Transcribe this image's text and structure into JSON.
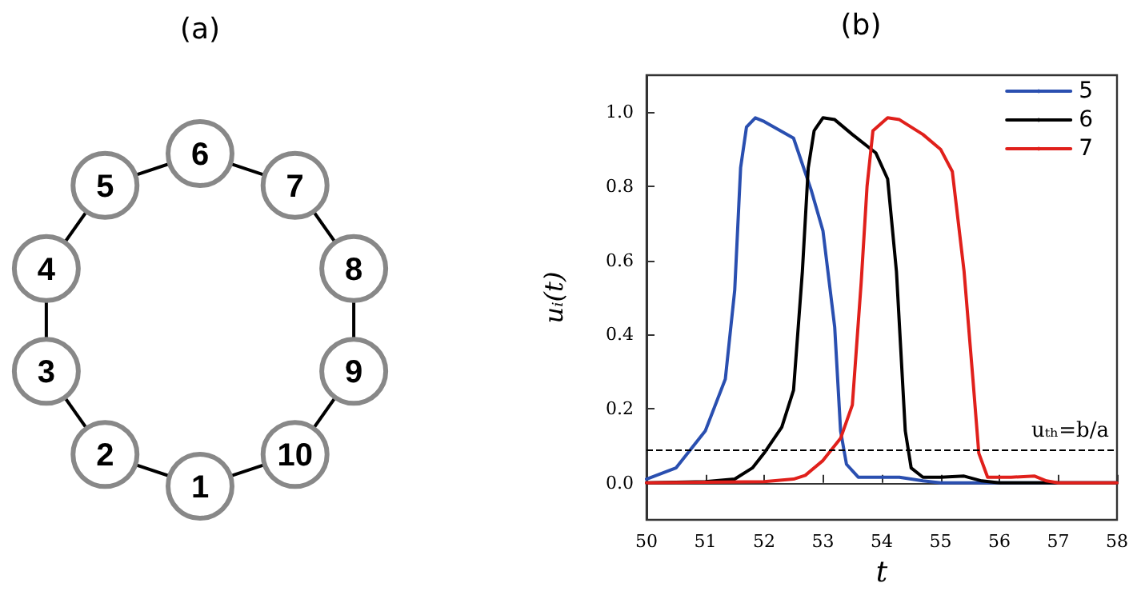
{
  "chart_data": [
    {
      "type": "other",
      "title": "(a)",
      "annotations": [
        "1",
        "2",
        "3",
        "4",
        "5",
        "6",
        "7",
        "8",
        "9",
        "10"
      ]
    },
    {
      "type": "line",
      "title": "(b)",
      "xlabel": "t",
      "ylabel": "uᵢ(t)",
      "xlim": [
        50,
        58
      ],
      "xticks": [
        50,
        51,
        52,
        53,
        54,
        55,
        56,
        57,
        58
      ],
      "ylim": [
        -0.1,
        1.1
      ],
      "yticks": [
        {
          "value": 0,
          "label": "0.0"
        },
        {
          "value": 0.2,
          "label": "0.2"
        },
        {
          "value": 0.4,
          "label": "0.4"
        },
        {
          "value": 0.6,
          "label": "0.6"
        },
        {
          "value": 0.8,
          "label": "0.8"
        },
        {
          "value": 1,
          "label": "1.0"
        }
      ],
      "legend": "top right",
      "line_style": "solid",
      "ref_lines": [
        {
          "axis": "y",
          "value": 0.085,
          "label": "uₜₕ=b/a",
          "line_style": "dashed",
          "color": "#000000"
        }
      ],
      "series": [
        {
          "name": "5",
          "color": "#2a4fb0",
          "x": [
            50,
            50.5,
            51,
            51.34,
            51.5,
            51.6,
            51.7,
            51.85,
            52,
            52.5,
            52.8,
            53,
            53.2,
            53.3,
            53.4,
            53.6,
            54,
            54.3,
            54.7,
            55,
            58
          ],
          "values": [
            0.01,
            0.04,
            0.14,
            0.28,
            0.52,
            0.85,
            0.96,
            0.985,
            0.975,
            0.93,
            0.79,
            0.68,
            0.42,
            0.14,
            0.05,
            0.015,
            0.015,
            0.015,
            0.005,
            0,
            0
          ]
        },
        {
          "name": "6",
          "color": "#000000",
          "x": [
            50,
            51,
            51.5,
            51.8,
            52,
            52.3,
            52.5,
            52.65,
            52.75,
            52.85,
            53,
            53.2,
            53.5,
            53.9,
            54.1,
            54.25,
            54.4,
            54.5,
            54.7,
            55,
            55.4,
            55.7,
            56,
            58
          ],
          "values": [
            0,
            0.003,
            0.01,
            0.04,
            0.08,
            0.15,
            0.25,
            0.57,
            0.85,
            0.95,
            0.985,
            0.98,
            0.94,
            0.89,
            0.82,
            0.57,
            0.14,
            0.04,
            0.015,
            0.015,
            0.018,
            0.005,
            0,
            0
          ]
        },
        {
          "name": "7",
          "color": "#e0201b",
          "x": [
            50,
            52,
            52.5,
            52.7,
            53,
            53.3,
            53.5,
            53.65,
            53.75,
            53.85,
            54.1,
            54.3,
            54.7,
            55,
            55.2,
            55.4,
            55.55,
            55.65,
            55.8,
            56.2,
            56.6,
            56.8,
            57,
            58
          ],
          "values": [
            0,
            0.003,
            0.01,
            0.02,
            0.06,
            0.12,
            0.21,
            0.54,
            0.8,
            0.95,
            0.985,
            0.98,
            0.94,
            0.9,
            0.84,
            0.57,
            0.28,
            0.08,
            0.015,
            0.015,
            0.018,
            0.005,
            0,
            0
          ]
        }
      ]
    }
  ]
}
